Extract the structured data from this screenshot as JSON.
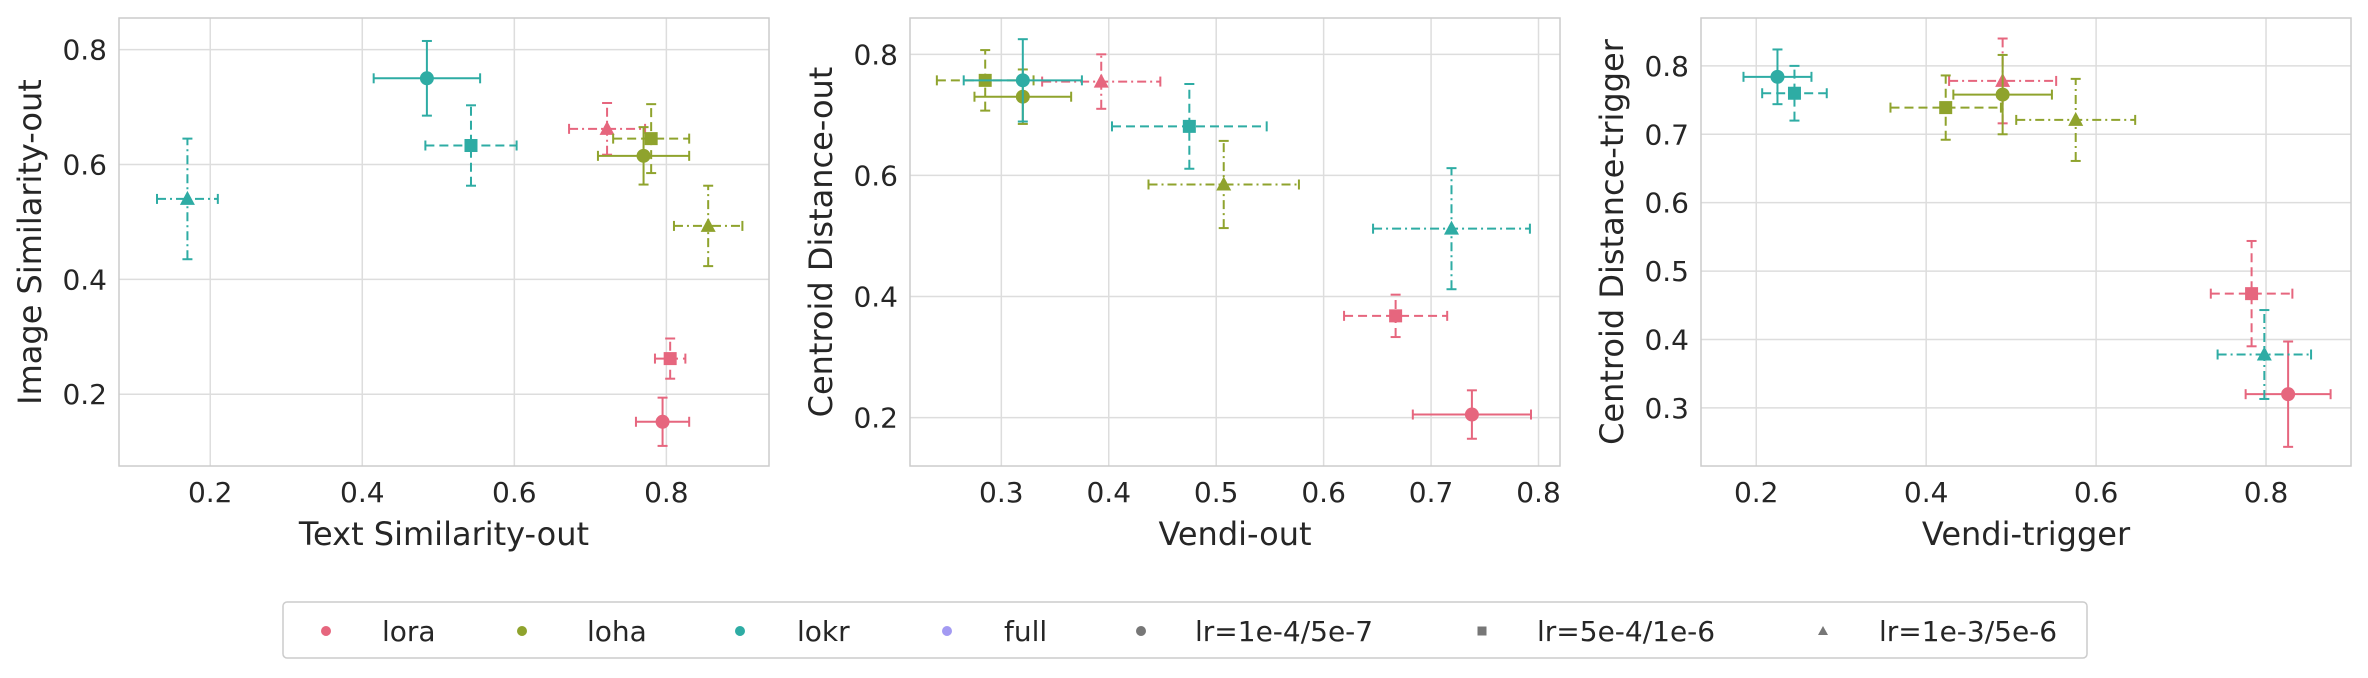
{
  "chart_data": [
    {
      "type": "scatter",
      "xlabel": "Text Similarity-out",
      "ylabel": "Image Similarity-out",
      "xlim": [
        0.08,
        0.935
      ],
      "ylim": [
        0.075,
        0.855
      ],
      "xticks": [
        0.2,
        0.4,
        0.6,
        0.8
      ],
      "yticks": [
        0.2,
        0.4,
        0.6,
        0.8
      ],
      "xtick_labels": [
        "0.2",
        "0.4",
        "0.6",
        "0.8"
      ],
      "ytick_labels": [
        "0.2",
        "0.4",
        "0.6",
        "0.8"
      ],
      "grid": true,
      "points": [
        {
          "method": "lora",
          "lr": "lr=1e-4/5e-7",
          "x": 0.795,
          "xerr": 0.035,
          "y": 0.152,
          "yerr": 0.042
        },
        {
          "method": "lora",
          "lr": "lr=5e-4/1e-6",
          "x": 0.805,
          "xerr": 0.02,
          "y": 0.262,
          "yerr": 0.035
        },
        {
          "method": "lora",
          "lr": "lr=1e-3/5e-6",
          "x": 0.722,
          "xerr": 0.05,
          "y": 0.662,
          "yerr": 0.045
        },
        {
          "method": "loha",
          "lr": "lr=1e-4/5e-7",
          "x": 0.77,
          "xerr": 0.06,
          "y": 0.615,
          "yerr": 0.05
        },
        {
          "method": "loha",
          "lr": "lr=5e-4/1e-6",
          "x": 0.78,
          "xerr": 0.05,
          "y": 0.645,
          "yerr": 0.06
        },
        {
          "method": "loha",
          "lr": "lr=1e-3/5e-6",
          "x": 0.855,
          "xerr": 0.045,
          "y": 0.493,
          "yerr": 0.07
        },
        {
          "method": "lokr",
          "lr": "lr=1e-4/5e-7",
          "x": 0.485,
          "xerr": 0.07,
          "y": 0.75,
          "yerr": 0.065
        },
        {
          "method": "lokr",
          "lr": "lr=5e-4/1e-6",
          "x": 0.543,
          "xerr": 0.06,
          "y": 0.633,
          "yerr": 0.07
        },
        {
          "method": "lokr",
          "lr": "lr=1e-3/5e-6",
          "x": 0.17,
          "xerr": 0.04,
          "y": 0.54,
          "yerr": 0.105
        }
      ]
    },
    {
      "type": "scatter",
      "xlabel": "Vendi-out",
      "ylabel": "Centroid Distance-out",
      "xlim": [
        0.215,
        0.82
      ],
      "ylim": [
        0.12,
        0.86
      ],
      "xticks": [
        0.3,
        0.4,
        0.5,
        0.6,
        0.7,
        0.8
      ],
      "yticks": [
        0.2,
        0.4,
        0.6,
        0.8
      ],
      "xtick_labels": [
        "0.3",
        "0.4",
        "0.5",
        "0.6",
        "0.7",
        "0.8"
      ],
      "ytick_labels": [
        "0.2",
        "0.4",
        "0.6",
        "0.8"
      ],
      "grid": true,
      "points": [
        {
          "method": "lora",
          "lr": "lr=1e-4/5e-7",
          "x": 0.738,
          "xerr": 0.055,
          "y": 0.205,
          "yerr": 0.04
        },
        {
          "method": "lora",
          "lr": "lr=5e-4/1e-6",
          "x": 0.667,
          "xerr": 0.048,
          "y": 0.368,
          "yerr": 0.035
        },
        {
          "method": "lora",
          "lr": "lr=1e-3/5e-6",
          "x": 0.393,
          "xerr": 0.055,
          "y": 0.755,
          "yerr": 0.045
        },
        {
          "method": "loha",
          "lr": "lr=1e-4/5e-7",
          "x": 0.32,
          "xerr": 0.045,
          "y": 0.73,
          "yerr": 0.045
        },
        {
          "method": "loha",
          "lr": "lr=5e-4/1e-6",
          "x": 0.285,
          "xerr": 0.045,
          "y": 0.757,
          "yerr": 0.05
        },
        {
          "method": "loha",
          "lr": "lr=1e-3/5e-6",
          "x": 0.507,
          "xerr": 0.07,
          "y": 0.585,
          "yerr": 0.072
        },
        {
          "method": "lokr",
          "lr": "lr=1e-4/5e-7",
          "x": 0.32,
          "xerr": 0.055,
          "y": 0.757,
          "yerr": 0.068
        },
        {
          "method": "lokr",
          "lr": "lr=5e-4/1e-6",
          "x": 0.475,
          "xerr": 0.072,
          "y": 0.681,
          "yerr": 0.07
        },
        {
          "method": "lokr",
          "lr": "lr=1e-3/5e-6",
          "x": 0.719,
          "xerr": 0.073,
          "y": 0.512,
          "yerr": 0.1
        }
      ]
    },
    {
      "type": "scatter",
      "xlabel": "Vendi-trigger",
      "ylabel": "Centroid Distance-trigger",
      "xlim": [
        0.135,
        0.9
      ],
      "ylim": [
        0.215,
        0.87
      ],
      "xticks": [
        0.2,
        0.4,
        0.6,
        0.8
      ],
      "yticks": [
        0.3,
        0.4,
        0.5,
        0.6,
        0.7,
        0.8
      ],
      "xtick_labels": [
        "0.2",
        "0.4",
        "0.6",
        "0.8"
      ],
      "ytick_labels": [
        "0.3",
        "0.4",
        "0.5",
        "0.6",
        "0.7",
        "0.8"
      ],
      "grid": true,
      "points": [
        {
          "method": "lora",
          "lr": "lr=1e-4/5e-7",
          "x": 0.826,
          "xerr": 0.05,
          "y": 0.32,
          "yerr": 0.077
        },
        {
          "method": "lora",
          "lr": "lr=5e-4/1e-6",
          "x": 0.783,
          "xerr": 0.048,
          "y": 0.467,
          "yerr": 0.077
        },
        {
          "method": "lora",
          "lr": "lr=1e-3/5e-6",
          "x": 0.49,
          "xerr": 0.063,
          "y": 0.778,
          "yerr": 0.062
        },
        {
          "method": "loha",
          "lr": "lr=1e-4/5e-7",
          "x": 0.49,
          "xerr": 0.058,
          "y": 0.758,
          "yerr": 0.058
        },
        {
          "method": "loha",
          "lr": "lr=5e-4/1e-6",
          "x": 0.423,
          "xerr": 0.065,
          "y": 0.739,
          "yerr": 0.047
        },
        {
          "method": "loha",
          "lr": "lr=1e-3/5e-6",
          "x": 0.576,
          "xerr": 0.07,
          "y": 0.721,
          "yerr": 0.06
        },
        {
          "method": "lokr",
          "lr": "lr=1e-4/5e-7",
          "x": 0.225,
          "xerr": 0.04,
          "y": 0.784,
          "yerr": 0.04
        },
        {
          "method": "lokr",
          "lr": "lr=5e-4/1e-6",
          "x": 0.245,
          "xerr": 0.038,
          "y": 0.76,
          "yerr": 0.04
        },
        {
          "method": "lokr",
          "lr": "lr=1e-3/5e-6",
          "x": 0.798,
          "xerr": 0.055,
          "y": 0.378,
          "yerr": 0.065
        }
      ]
    }
  ],
  "styles": {
    "methods": {
      "lora": {
        "color": "#e6667e"
      },
      "loha": {
        "color": "#8fa32d"
      },
      "lokr": {
        "color": "#2eaca4"
      },
      "full": {
        "color": "#a39af2"
      }
    },
    "lrs": {
      "lr=1e-4/5e-7": {
        "marker": "circle",
        "dash": "solid"
      },
      "lr=5e-4/1e-6": {
        "marker": "square",
        "dash": "dashed"
      },
      "lr=1e-3/5e-6": {
        "marker": "triangle",
        "dash": "dashdot"
      }
    }
  },
  "legend": {
    "position": "bottom-center",
    "items": [
      {
        "label": "lora",
        "marker": "circle",
        "color": "#e6667e"
      },
      {
        "label": "loha",
        "marker": "circle",
        "color": "#8fa32d"
      },
      {
        "label": "lokr",
        "marker": "circle",
        "color": "#2eaca4"
      },
      {
        "label": "full",
        "marker": "circle",
        "color": "#a39af2"
      },
      {
        "label": "lr=1e-4/5e-7",
        "marker": "circle",
        "color": "#777777"
      },
      {
        "label": "lr=5e-4/1e-6",
        "marker": "square",
        "color": "#777777"
      },
      {
        "label": "lr=1e-3/5e-6",
        "marker": "triangle",
        "color": "#777777"
      }
    ]
  }
}
